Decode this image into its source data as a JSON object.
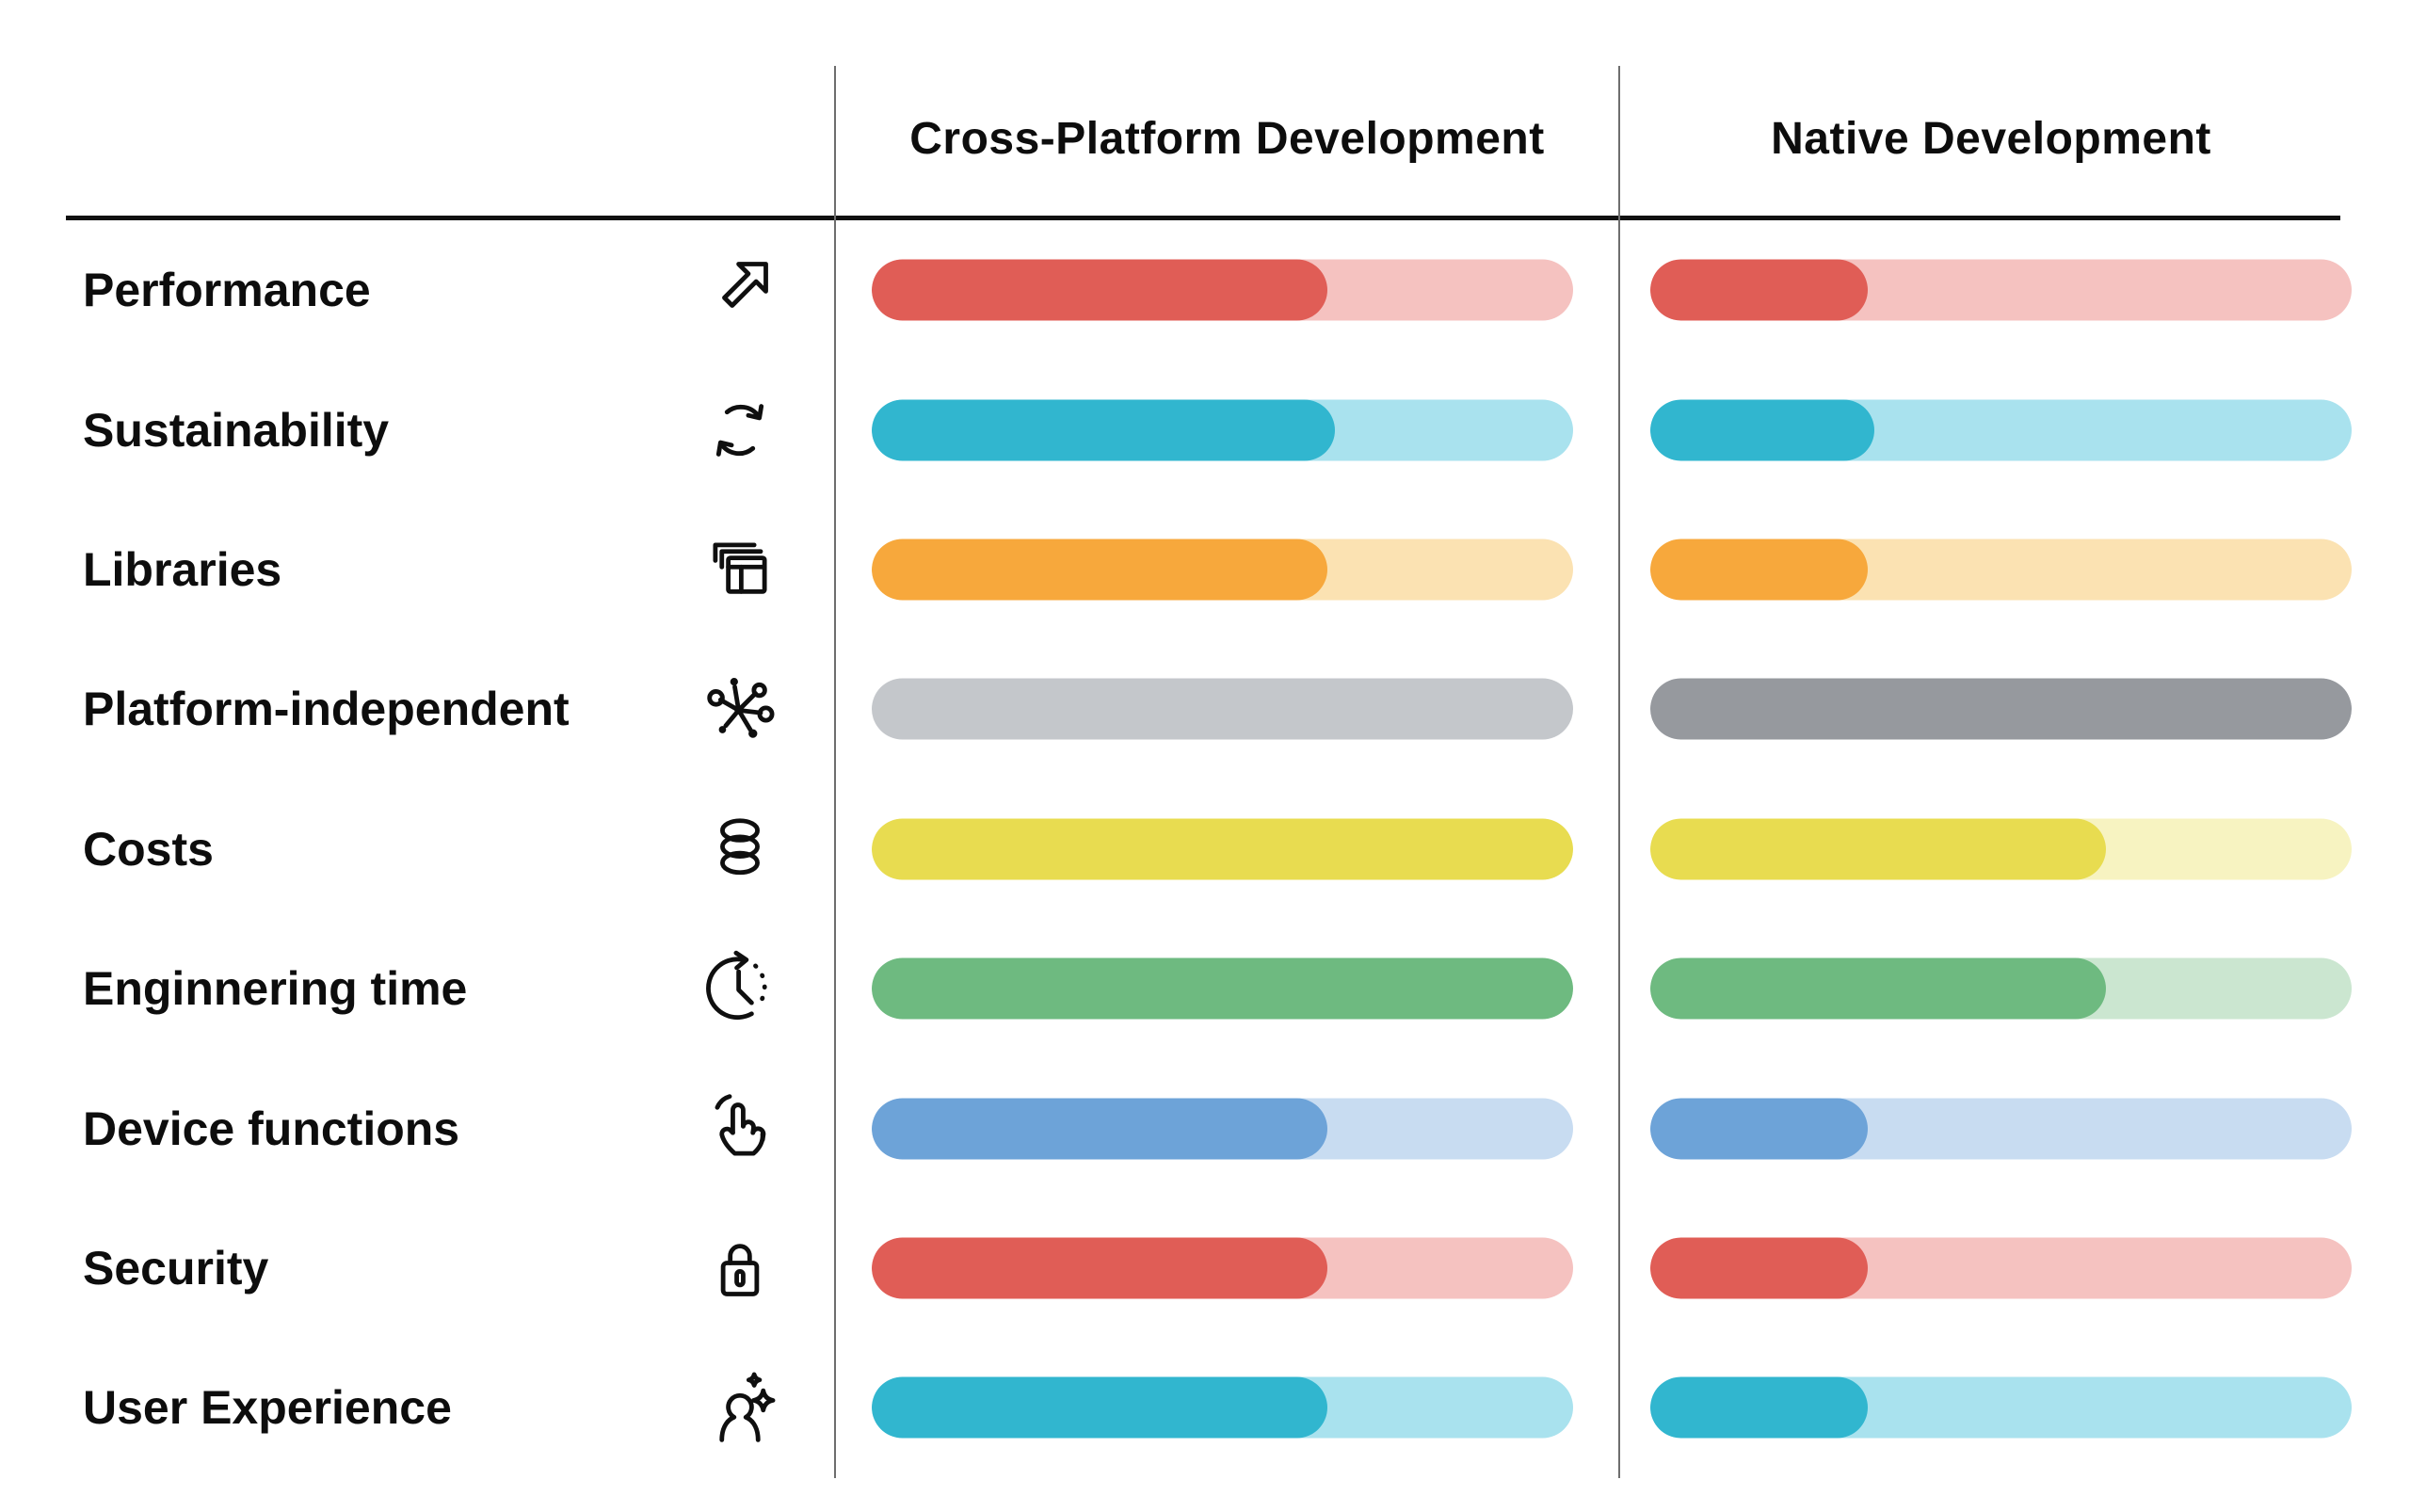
{
  "columns": [
    "Cross-Platform Development",
    "Native Development"
  ],
  "rows": [
    {
      "label": "Performance",
      "icon": "trend-arrow",
      "colors": {
        "fill": "#E05D56",
        "track": "#F5C2C0"
      },
      "values": {
        "cross_platform_pct": 65,
        "native_pct": 31
      }
    },
    {
      "label": "Sustainability",
      "icon": "sync-arrows",
      "colors": {
        "fill": "#31B6CF",
        "track": "#A9E2EE"
      },
      "values": {
        "cross_platform_pct": 66,
        "native_pct": 32
      }
    },
    {
      "label": "Libraries",
      "icon": "stacked-windows",
      "colors": {
        "fill": "#F7A83C",
        "track": "#FBE2B2"
      },
      "values": {
        "cross_platform_pct": 65,
        "native_pct": 31
      }
    },
    {
      "label": "Platform-independent",
      "icon": "network-hub",
      "colors": {
        "fill": "#96999E",
        "track": "#C4C7CB"
      },
      "values": {
        "cross_platform_pct": 0,
        "native_pct": 100
      }
    },
    {
      "label": "Costs",
      "icon": "coins",
      "colors": {
        "fill": "#E8DC50",
        "track": "#F7F3C1"
      },
      "values": {
        "cross_platform_pct": 100,
        "native_pct": 65
      }
    },
    {
      "label": "Enginnering time",
      "icon": "clock",
      "colors": {
        "fill": "#6EBA80",
        "track": "#CBE6D0"
      },
      "values": {
        "cross_platform_pct": 100,
        "native_pct": 65
      }
    },
    {
      "label": "Device functions",
      "icon": "tap-hand",
      "colors": {
        "fill": "#6DA3D8",
        "track": "#C8DCF1"
      },
      "values": {
        "cross_platform_pct": 65,
        "native_pct": 31
      }
    },
    {
      "label": "Security",
      "icon": "padlock",
      "colors": {
        "fill": "#E05D56",
        "track": "#F5C2C0"
      },
      "values": {
        "cross_platform_pct": 65,
        "native_pct": 31
      }
    },
    {
      "label": "User Experience",
      "icon": "person-sparkle",
      "colors": {
        "fill": "#31B6CF",
        "track": "#A9E2EE"
      },
      "values": {
        "cross_platform_pct": 65,
        "native_pct": 31
      }
    }
  ],
  "chart_data": {
    "type": "bar",
    "title": "",
    "orientation": "horizontal",
    "categories": [
      "Performance",
      "Sustainability",
      "Libraries",
      "Platform-independent",
      "Costs",
      "Enginnering time",
      "Device functions",
      "Security",
      "User Experience"
    ],
    "series": [
      {
        "name": "Cross-Platform Development",
        "values": [
          65,
          66,
          65,
          0,
          100,
          100,
          65,
          65,
          65
        ]
      },
      {
        "name": "Native Development",
        "values": [
          31,
          32,
          31,
          100,
          65,
          65,
          31,
          31,
          31
        ]
      }
    ],
    "value_unit": "percent of pill bar filled (estimated from pixels)",
    "xlim": [
      0,
      100
    ],
    "grid": false,
    "legend_position": "column headers on top",
    "notes": "Platform-independent row uses gray: cross-platform bar fully light gray (0% dark fill), native bar fully dark gray (100% fill)."
  }
}
